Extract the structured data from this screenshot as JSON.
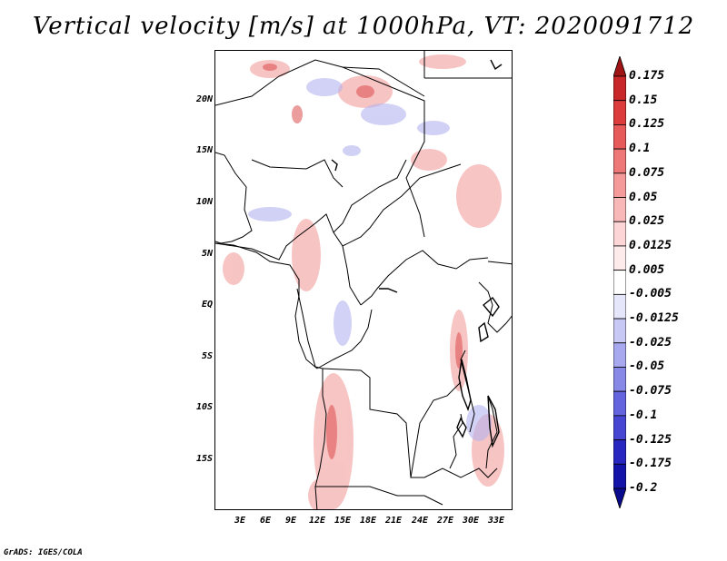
{
  "title": "Vertical velocity [m/s] at 1000hPa, VT: 2020091712",
  "footer": "GrADS: IGES/COLA",
  "map": {
    "lat_labels": [
      "20N",
      "15N",
      "10N",
      "5N",
      "EQ",
      "5S",
      "10S",
      "15S"
    ],
    "lon_labels": [
      "3E",
      "6E",
      "9E",
      "12E",
      "15E",
      "18E",
      "21E",
      "24E",
      "27E",
      "30E",
      "33E"
    ]
  },
  "colorbar": {
    "labels": [
      "0.175",
      "0.15",
      "0.125",
      "0.1",
      "0.075",
      "0.05",
      "0.025",
      "0.0125",
      "0.005",
      "-0.005",
      "-0.0125",
      "-0.025",
      "-0.05",
      "-0.075",
      "-0.1",
      "-0.125",
      "-0.175",
      "-0.2"
    ],
    "colors": [
      "#a01416",
      "#c8282a",
      "#dc3c3c",
      "#e65a5a",
      "#ee7878",
      "#f49a9a",
      "#f8b8b8",
      "#fcd6d6",
      "#fdeaea",
      "#ffffff",
      "#e6e6fa",
      "#c8c8f4",
      "#a8a8ee",
      "#8888e6",
      "#6464de",
      "#4646d2",
      "#2828c0",
      "#1414a8",
      "#0a0a8c"
    ]
  }
}
